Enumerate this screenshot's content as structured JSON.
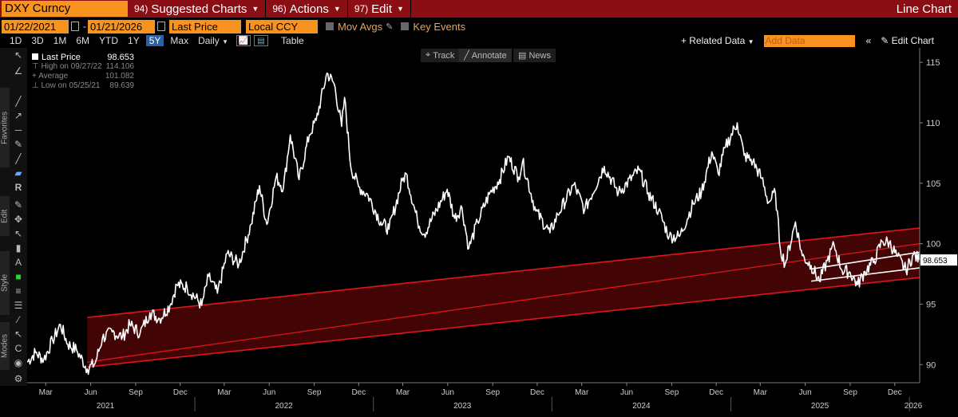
{
  "header": {
    "ticker": "DXY Curncy",
    "menu": [
      {
        "num": "94)",
        "label": "Suggested Charts"
      },
      {
        "num": "96)",
        "label": "Actions"
      },
      {
        "num": "97)",
        "label": "Edit"
      }
    ],
    "chart_type": "Line Chart"
  },
  "settings": {
    "start_date": "01/22/2021",
    "end_date": "01/21/2026",
    "field": "Last Price",
    "currency": "Local CCY",
    "mov_avgs": "Mov Avgs",
    "key_events": "Key Events"
  },
  "range_bar": {
    "ranges": [
      "1D",
      "3D",
      "1M",
      "6M",
      "YTD",
      "1Y",
      "5Y",
      "Max"
    ],
    "selected": "5Y",
    "frequency": "Daily",
    "table": "Table",
    "related_data": "+ Related Data",
    "add_data_placeholder": "Add Data",
    "edit_chart": "Edit Chart"
  },
  "chart_toolbar": {
    "track": "Track",
    "annotate": "Annotate",
    "news": "News"
  },
  "sidebar": {
    "favorites": "Favorites",
    "edit": "Edit",
    "style": "Style",
    "modes": "Modes"
  },
  "legend": {
    "last_label": "Last Price",
    "last_value": "98.653",
    "high_label": "High on 09/27/22",
    "high_value": "114.106",
    "avg_label": "Average",
    "avg_value": "101.082",
    "low_label": "Low on 05/25/21",
    "low_value": "89.639"
  },
  "colors": {
    "accent": "#f7931e",
    "header": "#8b0e14",
    "channel": "#e0141e",
    "line": "#ffffff"
  },
  "chart_data": {
    "type": "line",
    "title": "",
    "xlabel": "",
    "ylabel": "",
    "ylim": [
      88.5,
      116.2
    ],
    "xlim": [
      "2021-01-22",
      "2026-01-21"
    ],
    "y_axis_side": "right",
    "y_ticks": [
      90,
      95,
      100,
      105,
      110,
      115
    ],
    "current_value_label": "98.653",
    "current_value": 98.653,
    "x_month_ticks": [
      {
        "date": "2021-03-01",
        "label": "Mar"
      },
      {
        "date": "2021-06-01",
        "label": "Jun"
      },
      {
        "date": "2021-09-01",
        "label": "Sep"
      },
      {
        "date": "2021-12-01",
        "label": "Dec"
      },
      {
        "date": "2022-03-01",
        "label": "Mar"
      },
      {
        "date": "2022-06-01",
        "label": "Jun"
      },
      {
        "date": "2022-09-01",
        "label": "Sep"
      },
      {
        "date": "2022-12-01",
        "label": "Dec"
      },
      {
        "date": "2023-03-01",
        "label": "Mar"
      },
      {
        "date": "2023-06-01",
        "label": "Jun"
      },
      {
        "date": "2023-09-01",
        "label": "Sep"
      },
      {
        "date": "2023-12-01",
        "label": "Dec"
      },
      {
        "date": "2024-03-01",
        "label": "Mar"
      },
      {
        "date": "2024-06-01",
        "label": "Jun"
      },
      {
        "date": "2024-09-01",
        "label": "Sep"
      },
      {
        "date": "2024-12-01",
        "label": "Dec"
      },
      {
        "date": "2025-03-01",
        "label": "Mar"
      },
      {
        "date": "2025-06-01",
        "label": "Jun"
      },
      {
        "date": "2025-09-01",
        "label": "Sep"
      },
      {
        "date": "2025-12-01",
        "label": "Dec"
      }
    ],
    "x_year_ticks": [
      {
        "date": "2021-07-01",
        "label": "2021"
      },
      {
        "date": "2022-07-01",
        "label": "2022"
      },
      {
        "date": "2023-07-01",
        "label": "2023"
      },
      {
        "date": "2024-07-01",
        "label": "2024"
      },
      {
        "date": "2025-07-01",
        "label": "2025"
      },
      {
        "date": "2026-01-08",
        "label": "2026"
      }
    ],
    "series": [
      {
        "color": "#ffffff",
        "points": [
          [
            "2021-01-22",
            90.2
          ],
          [
            "2021-02-08",
            91.0
          ],
          [
            "2021-02-25",
            90.4
          ],
          [
            "2021-03-15",
            92.0
          ],
          [
            "2021-03-31",
            93.3
          ],
          [
            "2021-04-15",
            91.7
          ],
          [
            "2021-05-03",
            91.2
          ],
          [
            "2021-05-25",
            89.64
          ],
          [
            "2021-06-10",
            90.1
          ],
          [
            "2021-06-25",
            92.2
          ],
          [
            "2021-07-15",
            92.7
          ],
          [
            "2021-08-05",
            92.3
          ],
          [
            "2021-08-20",
            93.3
          ],
          [
            "2021-09-10",
            92.6
          ],
          [
            "2021-09-30",
            94.3
          ],
          [
            "2021-10-20",
            93.8
          ],
          [
            "2021-11-10",
            94.9
          ],
          [
            "2021-11-24",
            96.6
          ],
          [
            "2021-12-15",
            96.4
          ],
          [
            "2022-01-14",
            94.9
          ],
          [
            "2022-01-28",
            97.3
          ],
          [
            "2022-02-15",
            95.9
          ],
          [
            "2022-03-07",
            99.2
          ],
          [
            "2022-03-31",
            98.3
          ],
          [
            "2022-04-25",
            101.6
          ],
          [
            "2022-05-12",
            104.8
          ],
          [
            "2022-05-27",
            101.6
          ],
          [
            "2022-06-15",
            105.5
          ],
          [
            "2022-06-30",
            104.6
          ],
          [
            "2022-07-14",
            109.0
          ],
          [
            "2022-08-01",
            105.3
          ],
          [
            "2022-08-22",
            109.0
          ],
          [
            "2022-09-05",
            110.2
          ],
          [
            "2022-09-27",
            114.1
          ],
          [
            "2022-10-12",
            113.2
          ],
          [
            "2022-10-27",
            109.7
          ],
          [
            "2022-11-02",
            112.1
          ],
          [
            "2022-11-15",
            106.3
          ],
          [
            "2022-12-01",
            104.7
          ],
          [
            "2022-12-20",
            104.0
          ],
          [
            "2023-01-15",
            101.8
          ],
          [
            "2023-02-01",
            101.2
          ],
          [
            "2023-02-28",
            105.2
          ],
          [
            "2023-03-08",
            105.8
          ],
          [
            "2023-03-31",
            101.9
          ],
          [
            "2023-04-14",
            100.8
          ],
          [
            "2023-05-31",
            104.5
          ],
          [
            "2023-06-15",
            102.1
          ],
          [
            "2023-06-30",
            103.0
          ],
          [
            "2023-07-14",
            99.6
          ],
          [
            "2023-08-01",
            101.8
          ],
          [
            "2023-08-25",
            104.1
          ],
          [
            "2023-09-15",
            105.3
          ],
          [
            "2023-10-03",
            107.2
          ],
          [
            "2023-10-24",
            105.5
          ],
          [
            "2023-11-01",
            106.8
          ],
          [
            "2023-11-28",
            102.7
          ],
          [
            "2023-12-27",
            100.9
          ],
          [
            "2024-01-12",
            102.4
          ],
          [
            "2024-02-14",
            104.9
          ],
          [
            "2024-03-07",
            102.8
          ],
          [
            "2024-04-16",
            106.4
          ],
          [
            "2024-05-15",
            104.2
          ],
          [
            "2024-06-26",
            106.1
          ],
          [
            "2024-07-15",
            104.2
          ],
          [
            "2024-08-05",
            102.7
          ],
          [
            "2024-08-27",
            100.6
          ],
          [
            "2024-09-17",
            100.6
          ],
          [
            "2024-10-15",
            103.3
          ],
          [
            "2024-11-01",
            104.3
          ],
          [
            "2024-11-22",
            107.6
          ],
          [
            "2024-12-05",
            105.8
          ],
          [
            "2024-12-20",
            108.0
          ],
          [
            "2025-01-13",
            110.0
          ],
          [
            "2025-01-27",
            107.3
          ],
          [
            "2025-02-14",
            106.8
          ],
          [
            "2025-03-04",
            105.4
          ],
          [
            "2025-03-18",
            103.4
          ],
          [
            "2025-04-01",
            104.2
          ],
          [
            "2025-04-11",
            99.6
          ],
          [
            "2025-04-21",
            98.3
          ],
          [
            "2025-05-12",
            101.8
          ],
          [
            "2025-05-26",
            99.0
          ],
          [
            "2025-06-13",
            98.2
          ],
          [
            "2025-06-30",
            96.9
          ],
          [
            "2025-07-16",
            98.6
          ],
          [
            "2025-07-30",
            99.9
          ],
          [
            "2025-08-15",
            97.8
          ],
          [
            "2025-09-01",
            97.6
          ],
          [
            "2025-09-16",
            96.6
          ],
          [
            "2025-10-01",
            97.7
          ],
          [
            "2025-10-20",
            98.6
          ],
          [
            "2025-11-05",
            100.2
          ],
          [
            "2025-11-20",
            100.1
          ],
          [
            "2025-12-05",
            99.0
          ],
          [
            "2025-12-24",
            97.8
          ],
          [
            "2026-01-08",
            99.1
          ],
          [
            "2026-01-21",
            98.65
          ]
        ]
      }
    ],
    "channels": [
      {
        "name": "main",
        "color": "#e0141e",
        "fill": "#5a0508",
        "upper": [
          [
            "2021-05-25",
            93.9
          ],
          [
            "2026-01-21",
            101.3
          ]
        ],
        "lower": [
          [
            "2021-05-25",
            89.8
          ],
          [
            "2026-01-21",
            97.2
          ]
        ],
        "mid": [
          [
            "2021-05-25",
            90.2
          ],
          [
            "2026-01-21",
            100.0
          ]
        ]
      },
      {
        "name": "inner",
        "color": "#ffffff",
        "fill": "none",
        "upper": [
          [
            "2025-06-13",
            97.9
          ],
          [
            "2026-01-21",
            99.3
          ]
        ],
        "lower": [
          [
            "2025-06-13",
            96.9
          ],
          [
            "2026-01-21",
            98.0
          ]
        ]
      }
    ]
  }
}
